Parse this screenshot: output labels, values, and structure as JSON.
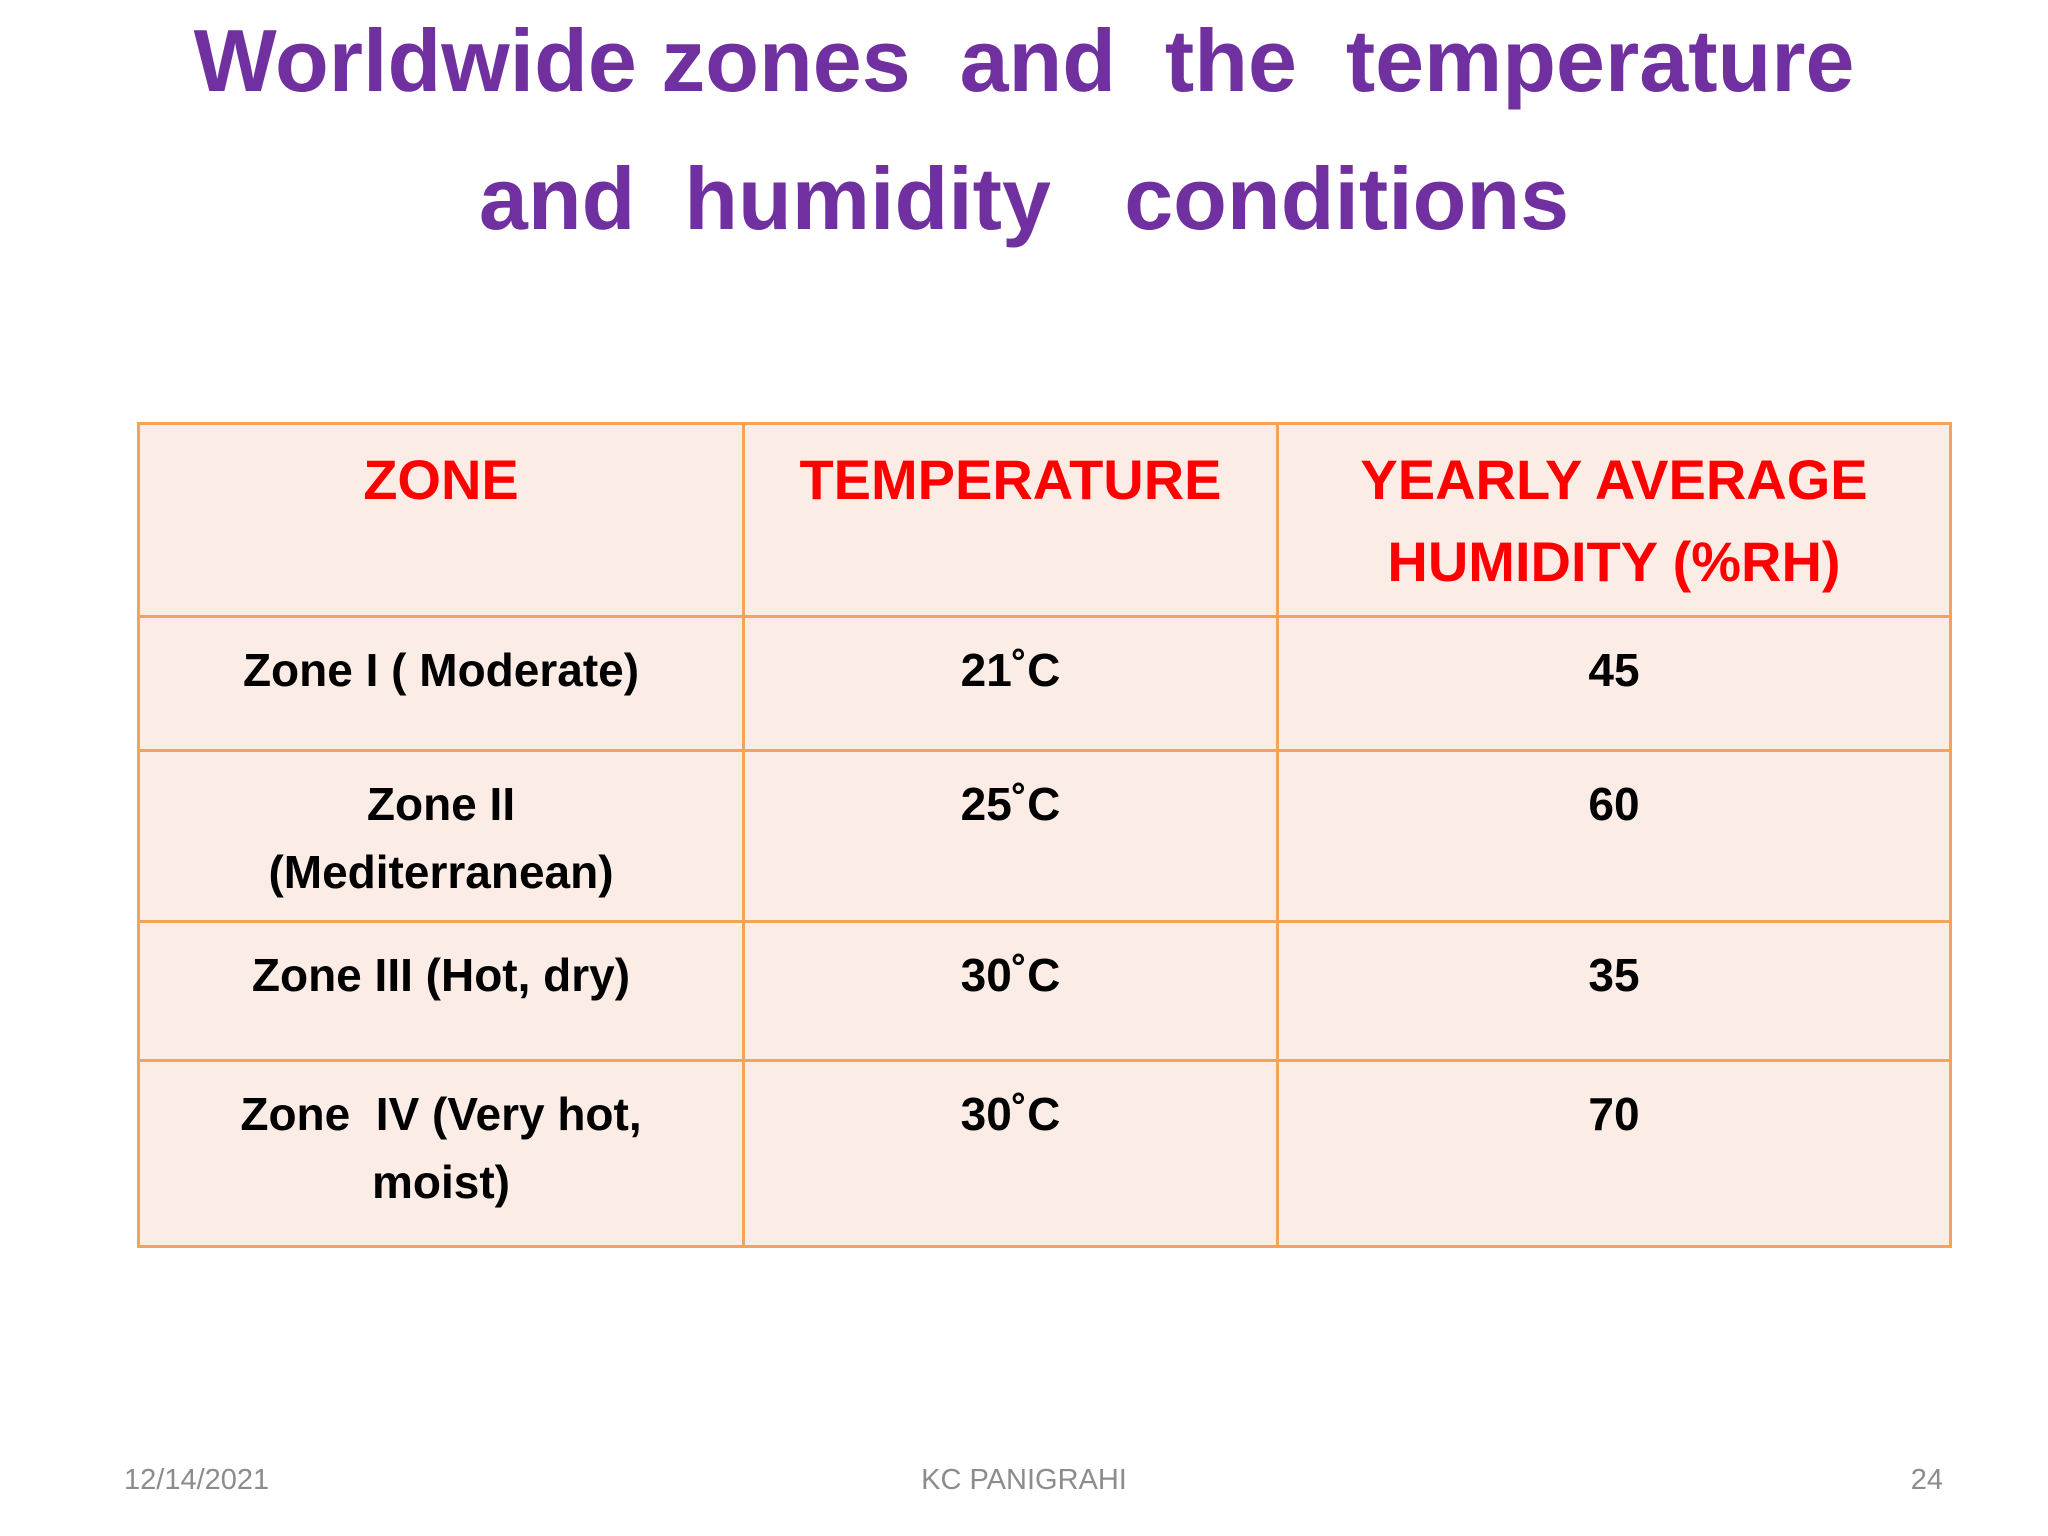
{
  "title_lines": [
    "Worldwide zones  and  the  temperature",
    "and  humidity   conditions"
  ],
  "table": {
    "header": [
      [
        "ZONE"
      ],
      [
        "TEMPERATURE"
      ],
      [
        "YEARLY AVERAGE",
        "HUMIDITY (%RH)"
      ]
    ],
    "rows": [
      [
        [
          "Zone I ( Moderate)"
        ],
        [
          "21˚C"
        ],
        [
          45
        ]
      ],
      [
        [
          "Zone II",
          "(Mediterranean)"
        ],
        [
          "25˚C"
        ],
        [
          60
        ]
      ],
      [
        [
          "Zone III (Hot, dry)"
        ],
        [
          "30˚C"
        ],
        [
          35
        ]
      ],
      [
        [
          "Zone  IV (Very hot,",
          "moist)"
        ],
        [
          "30˚C"
        ],
        [
          70
        ]
      ]
    ]
  },
  "footer": {
    "date": "12/14/2021",
    "author": "KC PANIGRAHI",
    "page": "24"
  }
}
